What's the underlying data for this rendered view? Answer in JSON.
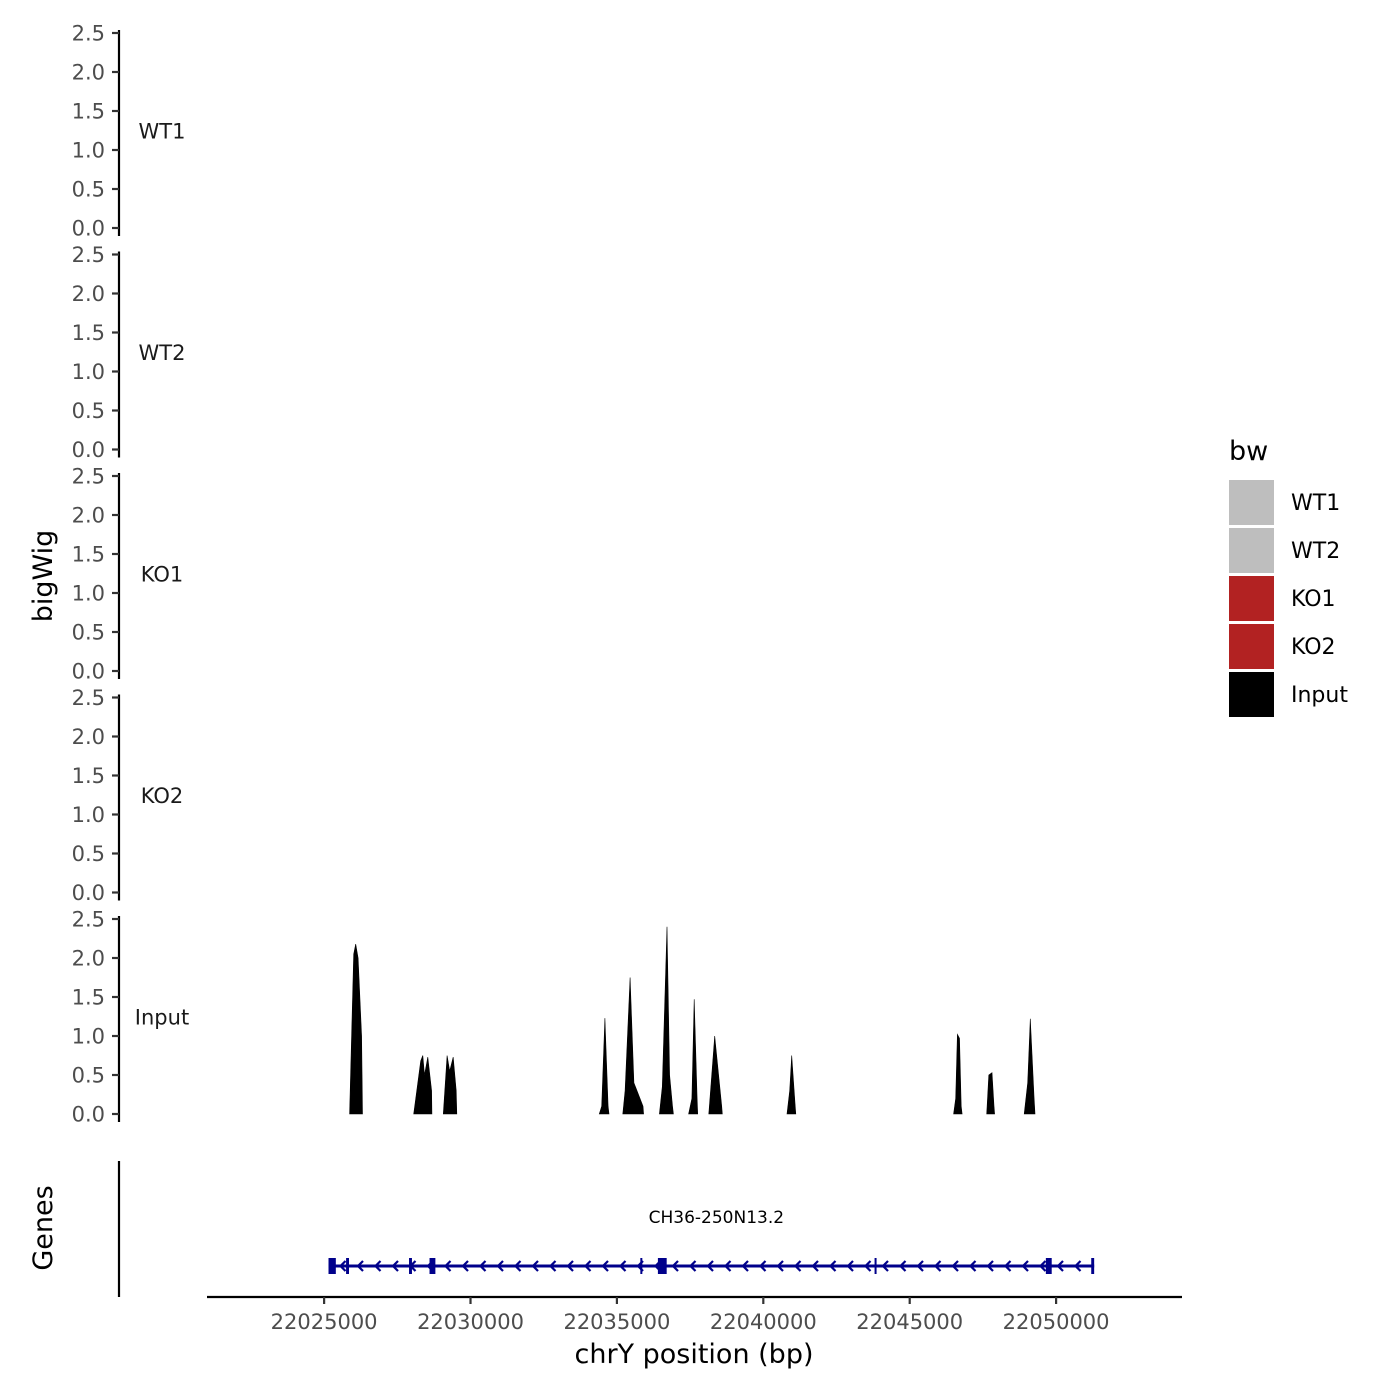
{
  "chart_data": {
    "type": "area",
    "ylabel": "bigWig",
    "genes_label": "Genes",
    "xlabel": "chrY position (bp)",
    "xlim": [
      22021000,
      22054300
    ],
    "x_ticks": [
      22025000,
      22030000,
      22035000,
      22040000,
      22045000,
      22050000
    ],
    "x_tick_labels": [
      "22025000",
      "22030000",
      "22035000",
      "22040000",
      "22045000",
      "22050000"
    ],
    "ylim": [
      0,
      2.5
    ],
    "y_ticks": [
      0,
      0.5,
      1,
      1.5,
      2,
      2.5
    ],
    "y_tick_labels": [
      "0.0",
      "0.5",
      "1.0",
      "1.5",
      "2.0",
      "2.5"
    ],
    "legend": {
      "title": "bw",
      "position": "right",
      "entries": [
        {
          "name": "WT1",
          "color": "#bebebe"
        },
        {
          "name": "WT2",
          "color": "#bebebe"
        },
        {
          "name": "KO1",
          "color": "#b22222"
        },
        {
          "name": "KO2",
          "color": "#b22222"
        },
        {
          "name": "Input",
          "color": "#000000"
        }
      ]
    },
    "series": [
      {
        "name": "WT1",
        "color": "#bebebe",
        "points": []
      },
      {
        "name": "WT2",
        "color": "#bebebe",
        "points": []
      },
      {
        "name": "KO1",
        "color": "#b22222",
        "points": []
      },
      {
        "name": "KO2",
        "color": "#b22222",
        "points": []
      },
      {
        "name": "Input",
        "color": "#000000",
        "points": [
          [
            22025870,
            0
          ],
          [
            22026010,
            2.05
          ],
          [
            22026080,
            2.18
          ],
          [
            22026160,
            2.0
          ],
          [
            22026280,
            1.0
          ],
          [
            22026310,
            0
          ],
          [
            22028060,
            0
          ],
          [
            22028300,
            0.68
          ],
          [
            22028370,
            0.75
          ],
          [
            22028430,
            0.5
          ],
          [
            22028540,
            0.73
          ],
          [
            22028670,
            0.3
          ],
          [
            22028680,
            0
          ],
          [
            22029070,
            0
          ],
          [
            22029200,
            0.75
          ],
          [
            22029290,
            0.55
          ],
          [
            22029410,
            0.73
          ],
          [
            22029510,
            0.3
          ],
          [
            22029530,
            0
          ],
          [
            22034400,
            0
          ],
          [
            22034480,
            0.1
          ],
          [
            22034590,
            1.23
          ],
          [
            22034700,
            0.1
          ],
          [
            22034730,
            0
          ],
          [
            22035200,
            0
          ],
          [
            22035280,
            0.3
          ],
          [
            22035450,
            1.75
          ],
          [
            22035580,
            0.4
          ],
          [
            22035890,
            0.1
          ],
          [
            22035910,
            0
          ],
          [
            22036450,
            0
          ],
          [
            22036550,
            0.35
          ],
          [
            22036710,
            2.4
          ],
          [
            22036800,
            0.5
          ],
          [
            22036900,
            0.1
          ],
          [
            22036930,
            0
          ],
          [
            22037450,
            0
          ],
          [
            22037560,
            0.2
          ],
          [
            22037640,
            1.47
          ],
          [
            22037740,
            0.2
          ],
          [
            22037760,
            0
          ],
          [
            22038140,
            0
          ],
          [
            22038340,
            1.0
          ],
          [
            22038580,
            0.1
          ],
          [
            22038600,
            0
          ],
          [
            22040810,
            0
          ],
          [
            22040900,
            0.3
          ],
          [
            22040970,
            0.75
          ],
          [
            22041090,
            0.1
          ],
          [
            22041110,
            0
          ],
          [
            22046500,
            0
          ],
          [
            22046570,
            0.2
          ],
          [
            22046630,
            1.02
          ],
          [
            22046700,
            0.97
          ],
          [
            22046760,
            0.1
          ],
          [
            22046790,
            0
          ],
          [
            22047630,
            0
          ],
          [
            22047700,
            0.5
          ],
          [
            22047810,
            0.53
          ],
          [
            22047880,
            0.1
          ],
          [
            22047900,
            0
          ],
          [
            22048910,
            0
          ],
          [
            22049030,
            0.4
          ],
          [
            22049120,
            1.22
          ],
          [
            22049250,
            0.2
          ],
          [
            22049280,
            0
          ]
        ]
      }
    ],
    "genes": [
      {
        "name": "CH36-250N13.2",
        "start": 22025150,
        "end": 22051300,
        "strand": "-",
        "color": "#00008b",
        "exons": [
          [
            22025150,
            22025400
          ],
          [
            22025750,
            22025850
          ],
          [
            22027900,
            22028000
          ],
          [
            22028600,
            22028800
          ],
          [
            22035800,
            22035850
          ],
          [
            22036400,
            22036700
          ],
          [
            22043800,
            22043850
          ],
          [
            22049650,
            22049850
          ],
          [
            22051200,
            22051300
          ]
        ]
      }
    ]
  }
}
